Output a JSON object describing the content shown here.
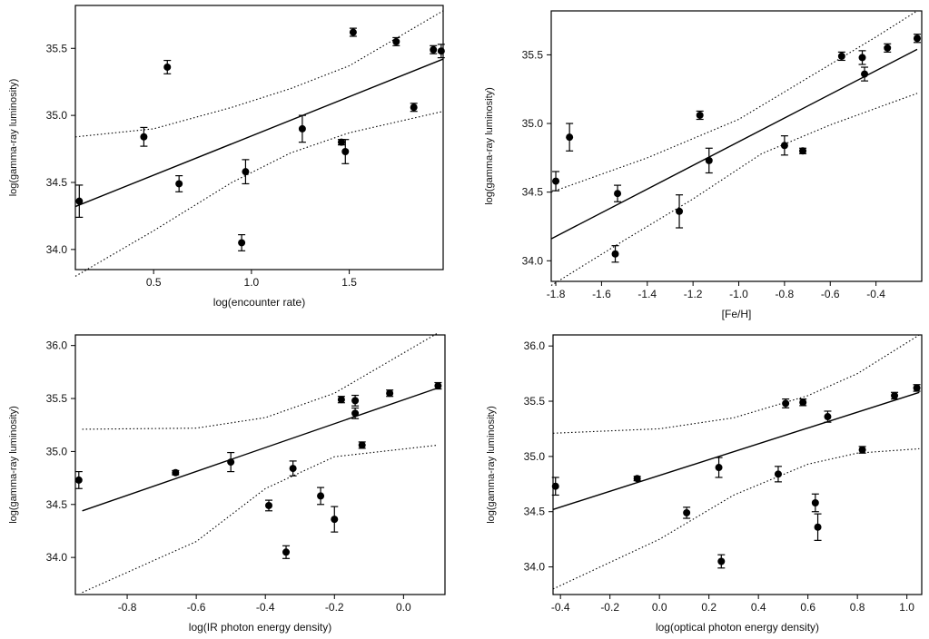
{
  "chart_data": [
    {
      "type": "scatter",
      "xlabel": "log(encounter rate)",
      "ylabel": "log(gamma-ray luminosity)",
      "xlim": [
        0.1,
        1.98
      ],
      "ylim": [
        33.85,
        35.82
      ],
      "xticks": [
        0.5,
        1.0,
        1.5
      ],
      "xtick_labels": [
        "0.5",
        "1.0",
        "1.5"
      ],
      "yticks": [
        34.0,
        34.5,
        35.0,
        35.5
      ],
      "ytick_labels": [
        "34.0",
        "34.5",
        "35.0",
        "35.5"
      ],
      "points": [
        {
          "x": 0.12,
          "y": 34.36,
          "err": 0.12
        },
        {
          "x": 0.45,
          "y": 34.84,
          "err": 0.07
        },
        {
          "x": 0.57,
          "y": 35.36,
          "err": 0.05
        },
        {
          "x": 0.63,
          "y": 34.49,
          "err": 0.06
        },
        {
          "x": 0.95,
          "y": 34.05,
          "err": 0.06
        },
        {
          "x": 0.97,
          "y": 34.58,
          "err": 0.09
        },
        {
          "x": 1.26,
          "y": 34.9,
          "err": 0.1
        },
        {
          "x": 1.46,
          "y": 34.8,
          "err": 0.02
        },
        {
          "x": 1.48,
          "y": 34.73,
          "err": 0.09
        },
        {
          "x": 1.52,
          "y": 35.62,
          "err": 0.03
        },
        {
          "x": 1.74,
          "y": 35.55,
          "err": 0.03
        },
        {
          "x": 1.83,
          "y": 35.06,
          "err": 0.03
        },
        {
          "x": 1.93,
          "y": 35.49,
          "err": 0.03
        },
        {
          "x": 1.97,
          "y": 35.48,
          "err": 0.05
        }
      ],
      "fit": [
        [
          0.1,
          34.32
        ],
        [
          1.98,
          35.42
        ]
      ],
      "upper_band": [
        [
          0.1,
          34.84
        ],
        [
          0.5,
          34.9
        ],
        [
          0.9,
          35.06
        ],
        [
          1.2,
          35.2
        ],
        [
          1.5,
          35.37
        ],
        [
          1.98,
          35.78
        ]
      ],
      "lower_band": [
        [
          0.1,
          33.8
        ],
        [
          0.5,
          34.14
        ],
        [
          0.9,
          34.5
        ],
        [
          1.2,
          34.72
        ],
        [
          1.5,
          34.87
        ],
        [
          1.98,
          35.03
        ]
      ]
    },
    {
      "type": "scatter",
      "xlabel": "[Fe/H]",
      "ylabel": "log(gamma-ray luminosity)",
      "xlim": [
        -1.82,
        -0.2
      ],
      "ylim": [
        33.85,
        35.82
      ],
      "xticks": [
        -1.8,
        -1.6,
        -1.4,
        -1.2,
        -1.0,
        -0.8,
        -0.6,
        -0.4
      ],
      "xtick_labels": [
        "-1.8",
        "-1.6",
        "-1.4",
        "-1.2",
        "-1.0",
        "-0.8",
        "-0.6",
        "-0.4"
      ],
      "yticks": [
        34.0,
        34.5,
        35.0,
        35.5
      ],
      "ytick_labels": [
        "34.0",
        "34.5",
        "35.0",
        "35.5"
      ],
      "points": [
        {
          "x": -1.8,
          "y": 34.58,
          "err": 0.07
        },
        {
          "x": -1.74,
          "y": 34.9,
          "err": 0.1
        },
        {
          "x": -1.54,
          "y": 34.05,
          "err": 0.06
        },
        {
          "x": -1.53,
          "y": 34.49,
          "err": 0.06
        },
        {
          "x": -1.26,
          "y": 34.36,
          "err": 0.12
        },
        {
          "x": -1.17,
          "y": 35.06,
          "err": 0.03
        },
        {
          "x": -1.13,
          "y": 34.73,
          "err": 0.09
        },
        {
          "x": -0.8,
          "y": 34.84,
          "err": 0.07
        },
        {
          "x": -0.72,
          "y": 34.8,
          "err": 0.02
        },
        {
          "x": -0.55,
          "y": 35.49,
          "err": 0.03
        },
        {
          "x": -0.46,
          "y": 35.48,
          "err": 0.05
        },
        {
          "x": -0.45,
          "y": 35.36,
          "err": 0.05
        },
        {
          "x": -0.35,
          "y": 35.55,
          "err": 0.03
        },
        {
          "x": -0.22,
          "y": 35.62,
          "err": 0.03
        }
      ],
      "fit": [
        [
          -1.82,
          34.16
        ],
        [
          -0.22,
          35.54
        ]
      ],
      "upper_band": [
        [
          -1.82,
          34.5
        ],
        [
          -1.4,
          34.75
        ],
        [
          -1.0,
          35.03
        ],
        [
          -0.7,
          35.33
        ],
        [
          -0.4,
          35.63
        ],
        [
          -0.22,
          35.82
        ]
      ],
      "lower_band": [
        [
          -1.82,
          33.82
        ],
        [
          -1.5,
          34.15
        ],
        [
          -1.2,
          34.45
        ],
        [
          -0.9,
          34.78
        ],
        [
          -0.6,
          34.99
        ],
        [
          -0.22,
          35.22
        ]
      ]
    },
    {
      "type": "scatter",
      "xlabel": "log(IR photon energy density)",
      "ylabel": "log(gamma-ray luminosity)",
      "xlim": [
        -0.95,
        0.12
      ],
      "ylim": [
        33.65,
        36.1
      ],
      "xticks": [
        -0.8,
        -0.6,
        -0.4,
        -0.2,
        0.0
      ],
      "xtick_labels": [
        "-0.8",
        "-0.6",
        "-0.4",
        "-0.2",
        "0.0"
      ],
      "yticks": [
        34.0,
        34.5,
        35.0,
        35.5,
        36.0
      ],
      "ytick_labels": [
        "34.0",
        "34.5",
        "35.0",
        "35.5",
        "36.0"
      ],
      "points": [
        {
          "x": -0.94,
          "y": 34.73,
          "err": 0.08
        },
        {
          "x": -0.66,
          "y": 34.8,
          "err": 0.02
        },
        {
          "x": -0.5,
          "y": 34.9,
          "err": 0.09
        },
        {
          "x": -0.39,
          "y": 34.49,
          "err": 0.05
        },
        {
          "x": -0.34,
          "y": 34.05,
          "err": 0.06
        },
        {
          "x": -0.32,
          "y": 34.84,
          "err": 0.07
        },
        {
          "x": -0.24,
          "y": 34.58,
          "err": 0.08
        },
        {
          "x": -0.2,
          "y": 34.36,
          "err": 0.12
        },
        {
          "x": -0.18,
          "y": 35.49,
          "err": 0.03
        },
        {
          "x": -0.14,
          "y": 35.48,
          "err": 0.05
        },
        {
          "x": -0.14,
          "y": 35.36,
          "err": 0.05
        },
        {
          "x": -0.12,
          "y": 35.06,
          "err": 0.03
        },
        {
          "x": -0.04,
          "y": 35.55,
          "err": 0.03
        },
        {
          "x": 0.1,
          "y": 35.62,
          "err": 0.03
        }
      ],
      "fit": [
        [
          -0.93,
          34.44
        ],
        [
          0.1,
          35.6
        ]
      ],
      "upper_band": [
        [
          -0.93,
          35.21
        ],
        [
          -0.6,
          35.22
        ],
        [
          -0.4,
          35.32
        ],
        [
          -0.2,
          35.55
        ],
        [
          0.1,
          36.12
        ]
      ],
      "lower_band": [
        [
          -0.93,
          33.67
        ],
        [
          -0.6,
          34.15
        ],
        [
          -0.4,
          34.65
        ],
        [
          -0.2,
          34.95
        ],
        [
          0.1,
          35.06
        ]
      ]
    },
    {
      "type": "scatter",
      "xlabel": "log(optical photon energy density)",
      "ylabel": "log(gamma-ray luminosity)",
      "xlim": [
        -0.43,
        1.06
      ],
      "ylim": [
        33.75,
        36.1
      ],
      "xticks": [
        -0.4,
        -0.2,
        0.0,
        0.2,
        0.4,
        0.6,
        0.8,
        1.0
      ],
      "xtick_labels": [
        "-0.4",
        "-0.2",
        "0.0",
        "0.2",
        "0.4",
        "0.6",
        "0.8",
        "1.0"
      ],
      "yticks": [
        34.0,
        34.5,
        35.0,
        35.5,
        36.0
      ],
      "ytick_labels": [
        "34.0",
        "34.5",
        "35.0",
        "35.5",
        "36.0"
      ],
      "points": [
        {
          "x": -0.42,
          "y": 34.73,
          "err": 0.08
        },
        {
          "x": -0.09,
          "y": 34.8,
          "err": 0.02
        },
        {
          "x": 0.11,
          "y": 34.49,
          "err": 0.05
        },
        {
          "x": 0.24,
          "y": 34.9,
          "err": 0.09
        },
        {
          "x": 0.25,
          "y": 34.05,
          "err": 0.06
        },
        {
          "x": 0.48,
          "y": 34.84,
          "err": 0.07
        },
        {
          "x": 0.51,
          "y": 35.48,
          "err": 0.04
        },
        {
          "x": 0.58,
          "y": 35.49,
          "err": 0.03
        },
        {
          "x": 0.63,
          "y": 34.58,
          "err": 0.08
        },
        {
          "x": 0.64,
          "y": 34.36,
          "err": 0.12
        },
        {
          "x": 0.68,
          "y": 35.36,
          "err": 0.05
        },
        {
          "x": 0.82,
          "y": 35.06,
          "err": 0.03
        },
        {
          "x": 0.95,
          "y": 35.55,
          "err": 0.03
        },
        {
          "x": 1.04,
          "y": 35.62,
          "err": 0.03
        }
      ],
      "fit": [
        [
          -0.43,
          34.52
        ],
        [
          1.05,
          35.58
        ]
      ],
      "upper_band": [
        [
          -0.43,
          35.21
        ],
        [
          0.0,
          35.25
        ],
        [
          0.3,
          35.35
        ],
        [
          0.6,
          35.55
        ],
        [
          0.8,
          35.75
        ],
        [
          1.05,
          36.1
        ]
      ],
      "lower_band": [
        [
          -0.43,
          33.8
        ],
        [
          0.0,
          34.25
        ],
        [
          0.3,
          34.65
        ],
        [
          0.6,
          34.93
        ],
        [
          0.8,
          35.03
        ],
        [
          1.05,
          35.07
        ]
      ]
    }
  ]
}
